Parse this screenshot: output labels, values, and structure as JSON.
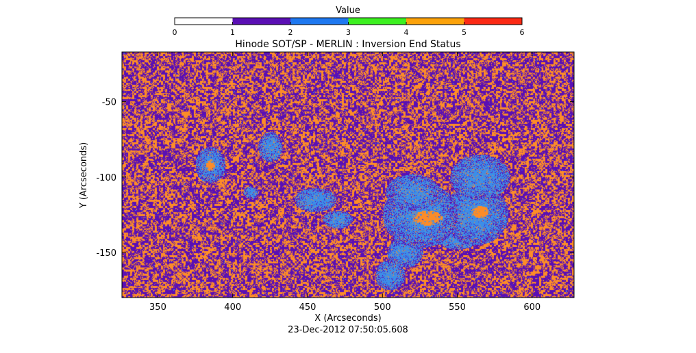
{
  "chart_data": {
    "type": "heatmap",
    "title": "Hinode SOT/SP - MERLIN : Inversion End Status",
    "subtitle": "23-Dec-2012 07:50:05.608",
    "xlabel": "X (Arcseconds)",
    "ylabel": "Y (Arcseconds)",
    "xlim": [
      326,
      628
    ],
    "ylim": [
      -180,
      -17
    ],
    "x_ticks": [
      "350",
      "400",
      "450",
      "500",
      "550",
      "600"
    ],
    "x_tick_values": [
      350,
      400,
      450,
      500,
      550,
      600
    ],
    "y_ticks": [
      "-50",
      "-100",
      "-150"
    ],
    "y_tick_values": [
      -50,
      -100,
      -150
    ],
    "colorbar": {
      "label": "Value",
      "range": [
        0,
        6
      ],
      "ticks": [
        "0",
        "1",
        "2",
        "3",
        "4",
        "5",
        "6"
      ],
      "segments": [
        {
          "from": 0,
          "to": 1,
          "color": "#ffffff"
        },
        {
          "from": 1,
          "to": 2,
          "color": "#5a0fb4"
        },
        {
          "from": 2,
          "to": 3,
          "color": "#1e78f0"
        },
        {
          "from": 3,
          "to": 4,
          "color": "#3cf020"
        },
        {
          "from": 4,
          "to": 5,
          "color": "#fca20a"
        },
        {
          "from": 5,
          "to": 6,
          "color": "#fc2a14"
        }
      ]
    },
    "map_colors": {
      "low": "#5a0fb4",
      "mid": "#3c8ee8",
      "high": "#fc8c28"
    },
    "regions_value_2": [
      {
        "x": 385,
        "y": -92,
        "rx": 10,
        "ry": 12
      },
      {
        "x": 425,
        "y": -80,
        "rx": 8,
        "ry": 10
      },
      {
        "x": 412,
        "y": -110,
        "rx": 5,
        "ry": 4
      },
      {
        "x": 455,
        "y": -115,
        "rx": 14,
        "ry": 8
      },
      {
        "x": 470,
        "y": -128,
        "rx": 10,
        "ry": 6
      },
      {
        "x": 505,
        "y": -165,
        "rx": 10,
        "ry": 10
      },
      {
        "x": 520,
        "y": -110,
        "rx": 18,
        "ry": 12
      },
      {
        "x": 525,
        "y": -125,
        "rx": 25,
        "ry": 22
      },
      {
        "x": 515,
        "y": -150,
        "rx": 12,
        "ry": 10
      },
      {
        "x": 565,
        "y": -100,
        "rx": 20,
        "ry": 15
      },
      {
        "x": 562,
        "y": -125,
        "rx": 22,
        "ry": 20
      },
      {
        "x": 550,
        "y": -140,
        "rx": 15,
        "ry": 8
      }
    ],
    "regions_value_4": [
      {
        "x": 530,
        "y": -127,
        "rx": 10,
        "ry": 5
      },
      {
        "x": 565,
        "y": -123,
        "rx": 6,
        "ry": 4
      },
      {
        "x": 385,
        "y": -92,
        "rx": 3,
        "ry": 4
      }
    ]
  }
}
